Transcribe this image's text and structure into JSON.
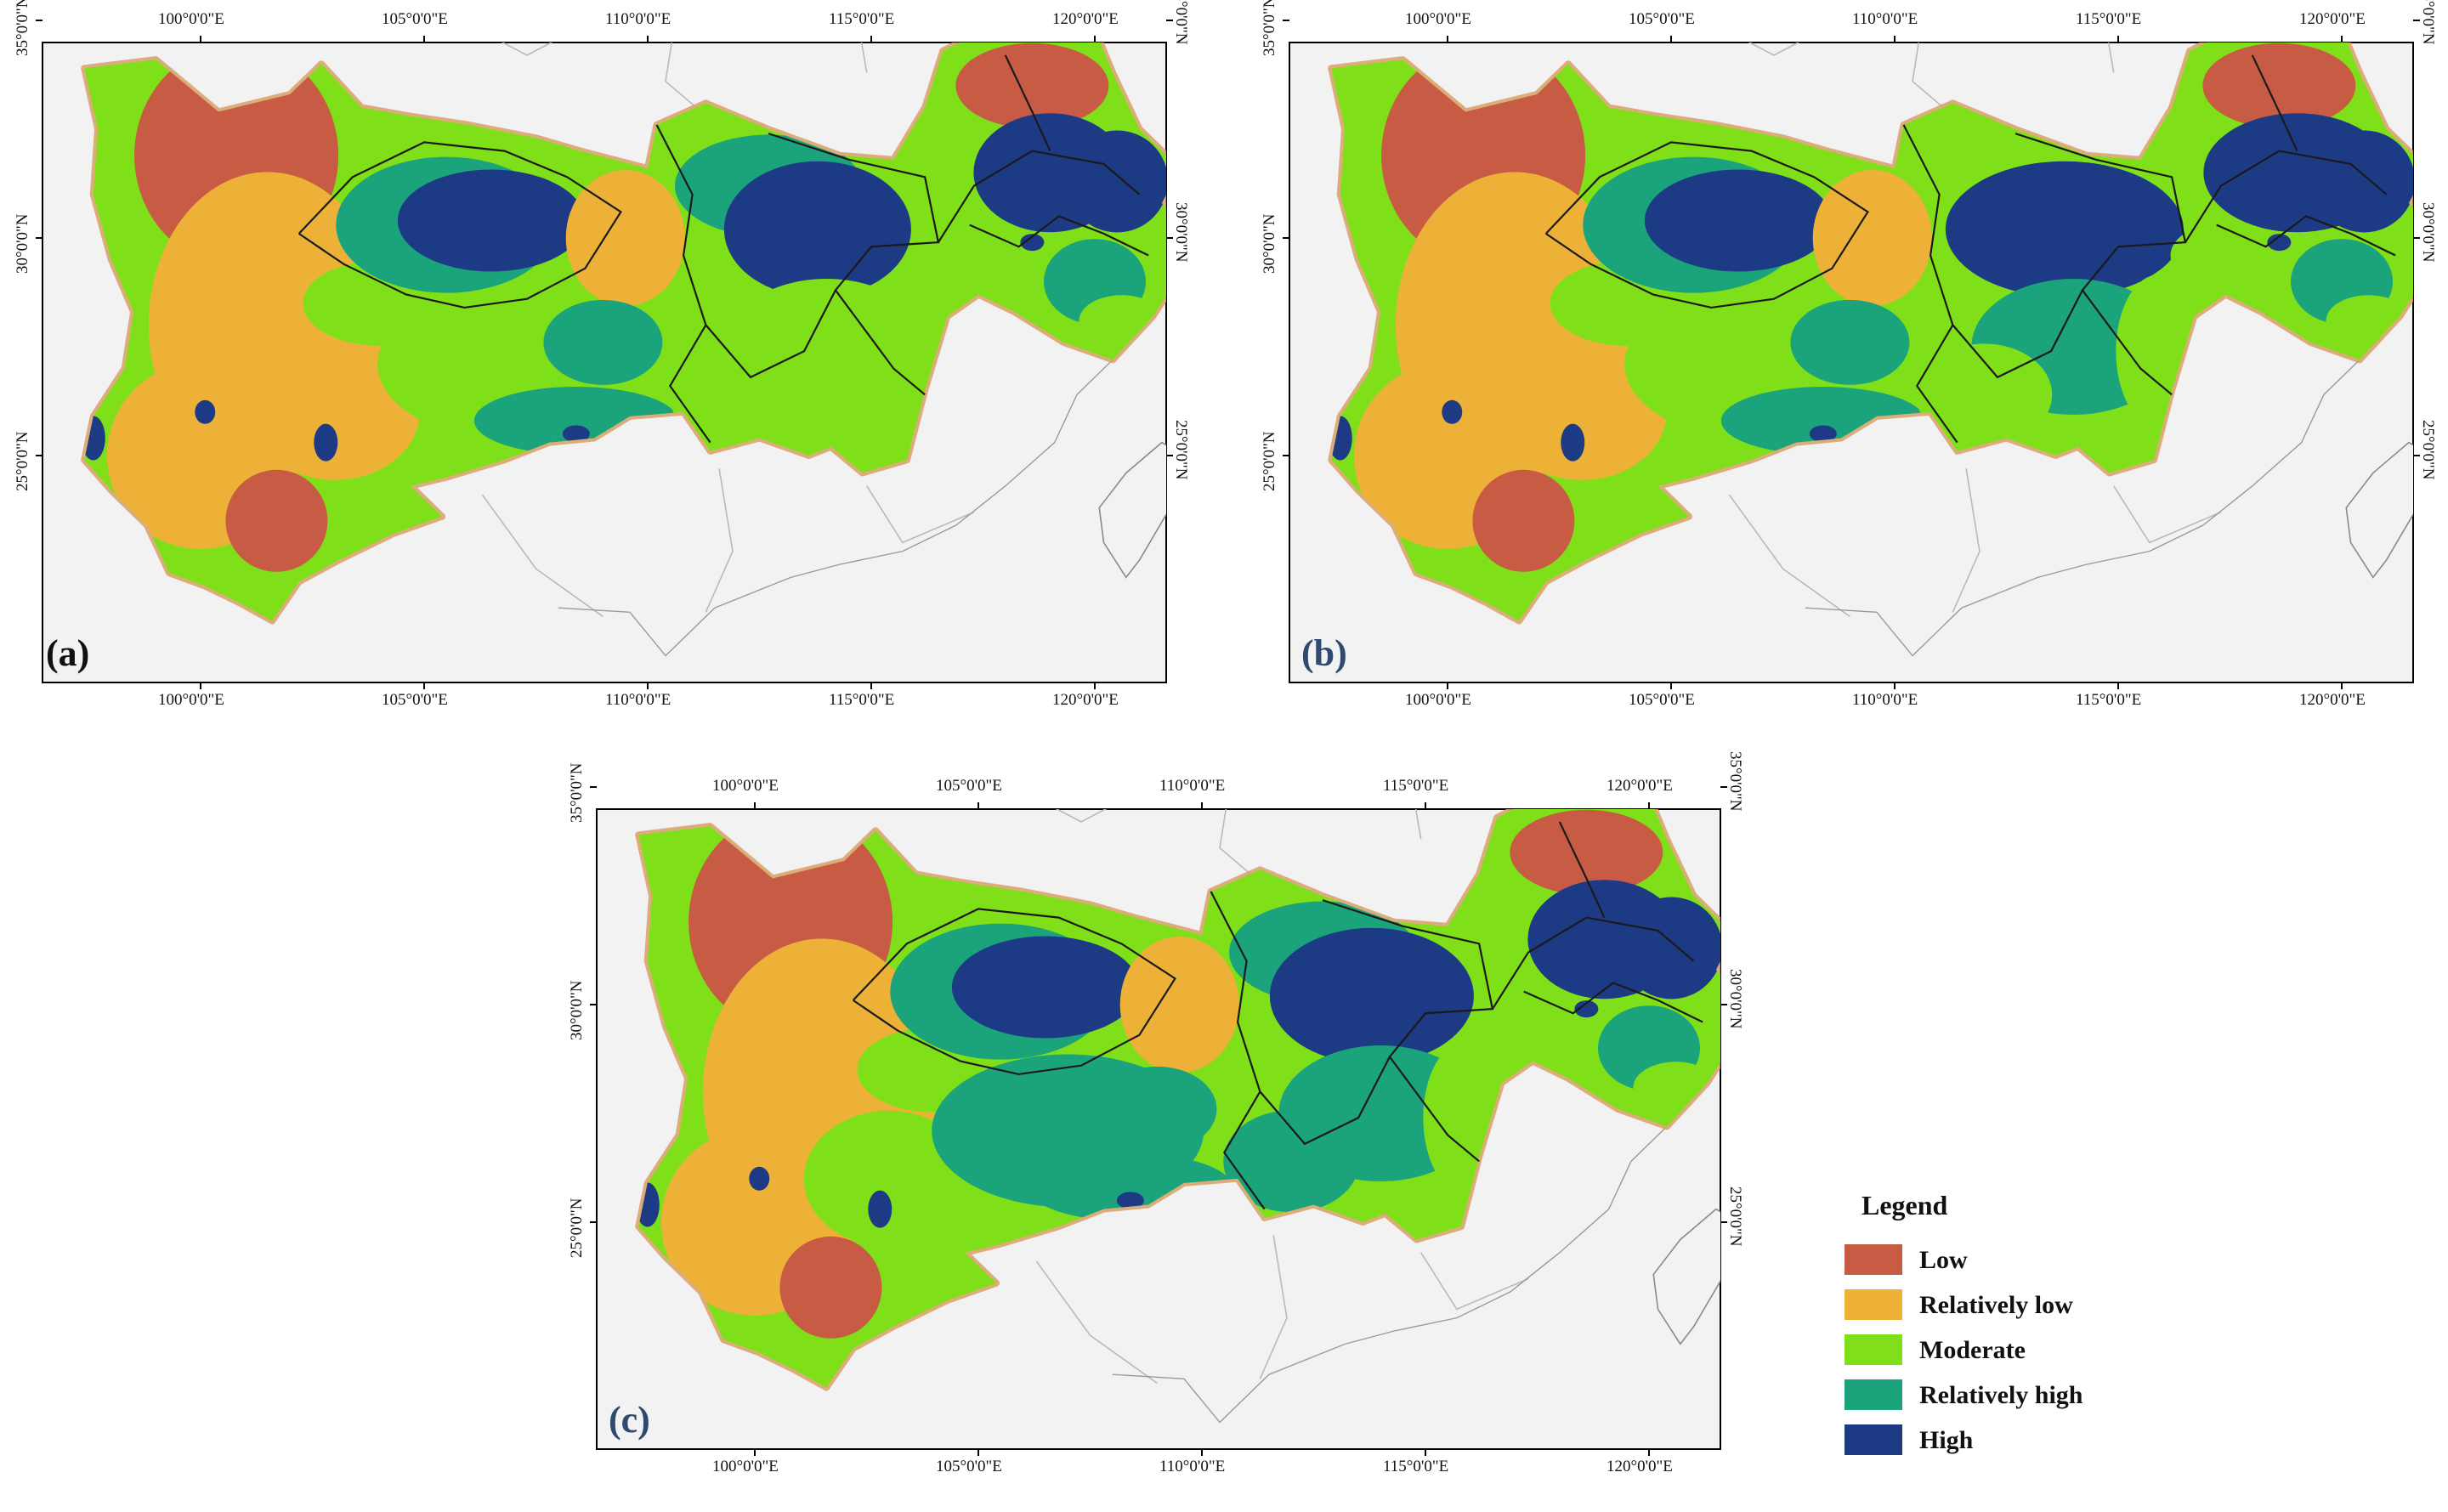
{
  "panels": [
    {
      "id": "a",
      "label": "(a)"
    },
    {
      "id": "b",
      "label": "(b)"
    },
    {
      "id": "c",
      "label": "(c)"
    }
  ],
  "axes": {
    "longitudes": [
      "100°0'0\"E",
      "105°0'0\"E",
      "110°0'0\"E",
      "115°0'0\"E",
      "120°0'0\"E"
    ],
    "latitudes": [
      "35°0'0\"N",
      "30°0'0\"N",
      "25°0'0\"N"
    ]
  },
  "legend": {
    "title": "Legend",
    "items": [
      {
        "label": "Low",
        "color": "#c75b43"
      },
      {
        "label": "Relatively low",
        "color": "#eeb138"
      },
      {
        "label": "Moderate",
        "color": "#7fe01a"
      },
      {
        "label": "Relatively high",
        "color": "#1ba37c"
      },
      {
        "label": "High",
        "color": "#1d3a85"
      }
    ]
  },
  "colors": {
    "background": "#f2f2f2",
    "outline_glow": "#d9a066",
    "province_line": "#1a1a1a"
  }
}
